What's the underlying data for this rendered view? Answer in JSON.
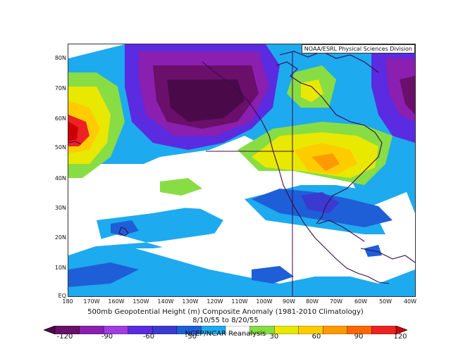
{
  "header": {
    "source_box": "NOAA/ESRL Physical Sciences Division"
  },
  "map": {
    "lat_labels": [
      "80N",
      "70N",
      "60N",
      "50N",
      "40N",
      "30N",
      "20N",
      "10N",
      "EQ"
    ],
    "lon_labels": [
      "180",
      "170W",
      "160W",
      "150W",
      "140W",
      "130W",
      "120W",
      "110W",
      "100W",
      "90W",
      "80W",
      "70W",
      "60W",
      "50W",
      "40W"
    ],
    "anomaly_palette": {
      "lt_-120": "#4a0a4a",
      "-120_-90": "#6a0f6a",
      "-90_-60": "#8a1fb0",
      "-60_-30": "#5a2be0",
      "-30_-15": "#1e5fd8",
      "-15_-5": "#1eaaee",
      "-5_5": "#ffffff",
      "5_15": "#88dd44",
      "15_30": "#e8e800",
      "30_60": "#ffcc00",
      "60_90": "#ff8800",
      "90_120": "#ee2222",
      "gt_120": "#cc0000"
    }
  },
  "footer": {
    "title_line1": "500mb Geopotential Height (m) Composite Anomaly (1981-2010 Climatology)",
    "title_line2": "8/10/55 to 8/20/55",
    "credit": "NCEP/NCAR Reanalysis"
  },
  "colorbar": {
    "ticks": [
      "-120",
      "-90",
      "-60",
      "-30",
      "30",
      "60",
      "90",
      "120"
    ],
    "colors": [
      "#4a0a4a",
      "#6a0f6a",
      "#8a1fb0",
      "#a03ce0",
      "#5a2be0",
      "#3a3ad0",
      "#1e5fd8",
      "#1eaaee",
      "#ffffff",
      "#88dd44",
      "#e8e800",
      "#ffcc00",
      "#ff9900",
      "#ff6600",
      "#ee2222",
      "#cc0000"
    ]
  }
}
